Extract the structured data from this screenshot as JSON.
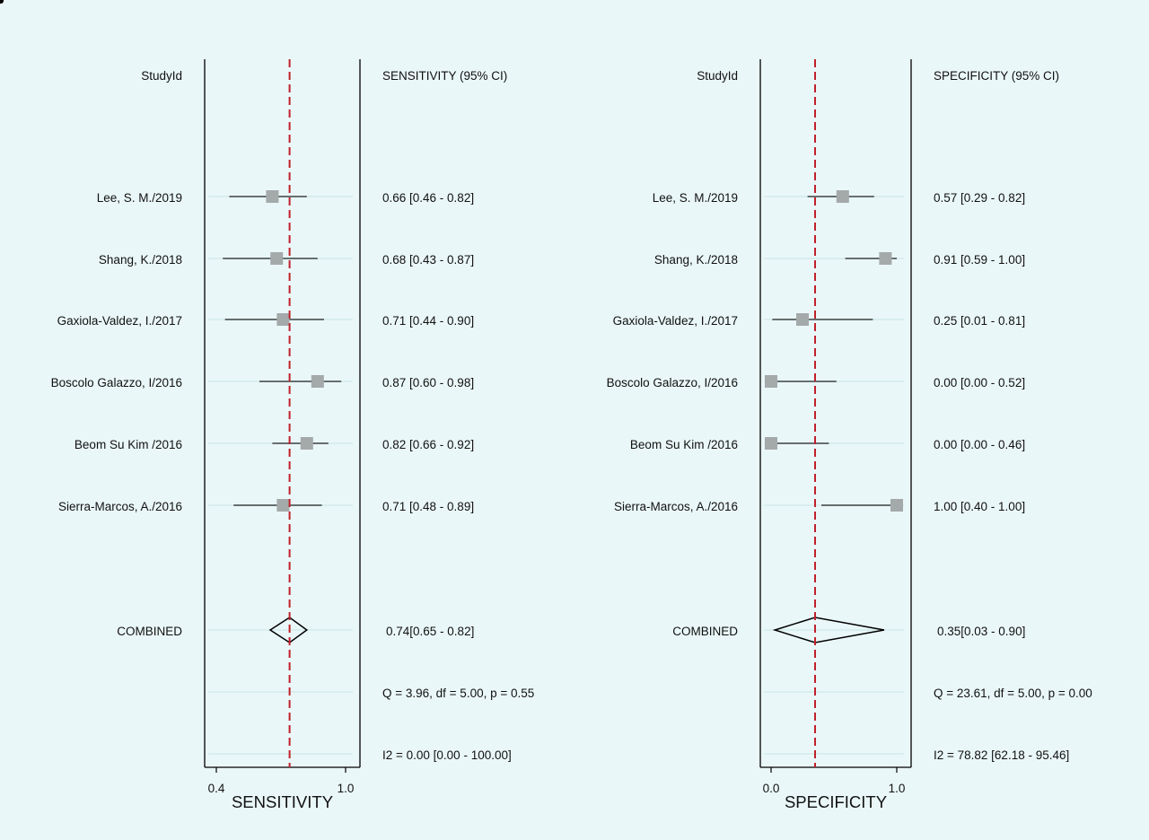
{
  "colors": {
    "background": "#eaf7f8",
    "marker": "#a4a9aa",
    "reference_line": "#c0202a",
    "ci_line": "#222222"
  },
  "chart_data": [
    {
      "type": "forest",
      "measure": "SENSITIVITY",
      "study_header": "StudyId",
      "estimate_header": "SENSITIVITY (95% CI)",
      "xlabel": "SENSITIVITY",
      "xlim": [
        0.4,
        1.0
      ],
      "xticks": [
        "0.4",
        "1.0"
      ],
      "reference_value": 0.74,
      "studies": [
        {
          "label": "Lee, S. M./2019",
          "estimate": 0.66,
          "lower": 0.46,
          "upper": 0.82,
          "text": "0.66 [0.46 - 0.82]"
        },
        {
          "label": "Shang, K./2018",
          "estimate": 0.68,
          "lower": 0.43,
          "upper": 0.87,
          "text": "0.68 [0.43 - 0.87]"
        },
        {
          "label": "Gaxiola-Valdez, I./2017",
          "estimate": 0.71,
          "lower": 0.44,
          "upper": 0.9,
          "text": "0.71 [0.44 - 0.90]"
        },
        {
          "label": "Boscolo Galazzo, I/2016",
          "estimate": 0.87,
          "lower": 0.6,
          "upper": 0.98,
          "text": "0.87 [0.60 - 0.98]"
        },
        {
          "label": "Beom Su Kim /2016",
          "estimate": 0.82,
          "lower": 0.66,
          "upper": 0.92,
          "text": "0.82 [0.66 - 0.92]"
        },
        {
          "label": "Sierra-Marcos, A./2016",
          "estimate": 0.71,
          "lower": 0.48,
          "upper": 0.89,
          "text": "0.71 [0.48 - 0.89]"
        }
      ],
      "combined": {
        "label": "COMBINED",
        "estimate": 0.74,
        "lower": 0.65,
        "upper": 0.82,
        "text": "0.74[0.65 - 0.82]"
      },
      "q_text": "Q =  3.96, df = 5.00, p =  0.55",
      "i2_text": "I2 = 0.00 [0.00 - 100.00]"
    },
    {
      "type": "forest",
      "measure": "SPECIFICITY",
      "study_header": "StudyId",
      "estimate_header": "SPECIFICITY (95% CI)",
      "xlabel": "SPECIFICITY",
      "xlim": [
        0.0,
        1.0
      ],
      "xticks": [
        "0.0",
        "1.0"
      ],
      "reference_value": 0.35,
      "studies": [
        {
          "label": "Lee, S. M./2019",
          "estimate": 0.57,
          "lower": 0.29,
          "upper": 0.82,
          "text": "0.57 [0.29 - 0.82]"
        },
        {
          "label": "Shang, K./2018",
          "estimate": 0.91,
          "lower": 0.59,
          "upper": 1.0,
          "text": "0.91 [0.59 - 1.00]"
        },
        {
          "label": "Gaxiola-Valdez, I./2017",
          "estimate": 0.25,
          "lower": 0.01,
          "upper": 0.81,
          "text": "0.25 [0.01 - 0.81]"
        },
        {
          "label": "Boscolo Galazzo, I/2016",
          "estimate": 0.0,
          "lower": 0.0,
          "upper": 0.52,
          "text": "0.00 [0.00 - 0.52]"
        },
        {
          "label": "Beom Su Kim /2016",
          "estimate": 0.0,
          "lower": 0.0,
          "upper": 0.46,
          "text": "0.00 [0.00 - 0.46]"
        },
        {
          "label": "Sierra-Marcos, A./2016",
          "estimate": 1.0,
          "lower": 0.4,
          "upper": 1.0,
          "text": "1.00 [0.40 - 1.00]"
        }
      ],
      "combined": {
        "label": "COMBINED",
        "estimate": 0.35,
        "lower": 0.03,
        "upper": 0.9,
        "text": "0.35[0.03 - 0.90]"
      },
      "q_text": "Q = 23.61, df = 5.00, p =  0.00",
      "i2_text": "I2 = 78.82 [62.18 - 95.46]"
    }
  ]
}
